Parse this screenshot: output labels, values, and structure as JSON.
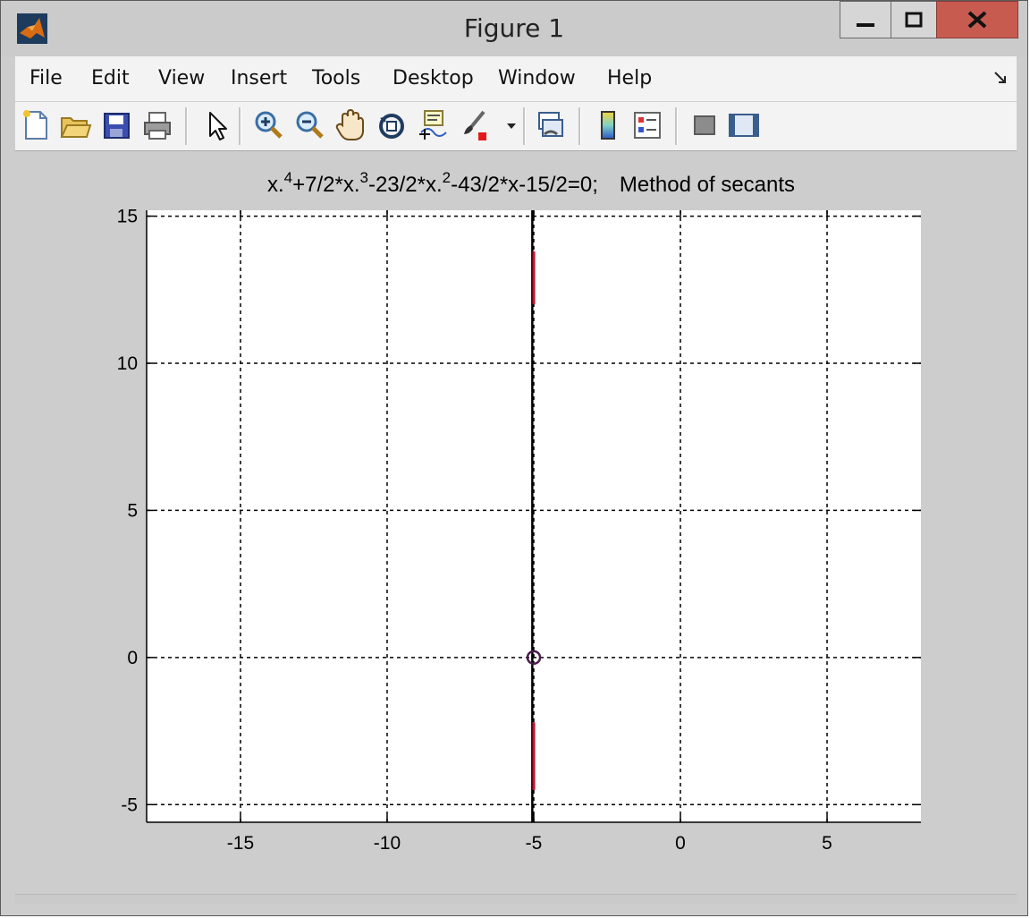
{
  "window": {
    "title": "Figure 1",
    "minimize_icon": "minimize-icon",
    "maximize_icon": "maximize-icon",
    "close_icon": "close-icon",
    "close_color": "#c75b50"
  },
  "menu": {
    "items": [
      "File",
      "Edit",
      "View",
      "Insert",
      "Tools",
      "Desktop",
      "Window",
      "Help"
    ],
    "dock_icon": "dock-arrow-icon"
  },
  "toolbar": {
    "icons": [
      "new-figure-icon",
      "open-file-icon",
      "save-icon",
      "print-icon",
      "edit-plot-arrow-icon",
      "zoom-in-icon",
      "zoom-out-icon",
      "pan-hand-icon",
      "rotate-3d-icon",
      "data-cursor-icon",
      "brush-icon",
      "brush-dropdown-icon",
      "link-plot-icon",
      "insert-colorbar-icon",
      "insert-legend-icon",
      "hide-plot-tools-icon",
      "show-plot-tools-icon"
    ]
  },
  "chart_data": {
    "type": "line",
    "title": "x.^4+7/2*x.^3-23/2*x.^2-43/2*x-15/2=0;   Method of secants",
    "title_parts": {
      "a": "x.",
      "sup1": "4",
      "b": "+7/2*x.",
      "sup2": "3",
      "c": "-23/2*x.",
      "sup3": "2",
      "d": "-43/2*x-15/2=0;",
      "e": "Method of secants"
    },
    "xlabel": "",
    "ylabel": "",
    "xlim": [
      -18.2,
      8.2
    ],
    "ylim": [
      -5.6,
      15.2
    ],
    "xticks": [
      -15,
      -10,
      -5,
      0,
      5
    ],
    "yticks": [
      -5,
      0,
      5,
      10,
      15
    ],
    "grid": true,
    "series": [
      {
        "color": "#000000",
        "x": [
          -5.05,
          -5.05
        ],
        "y": [
          15.2,
          -5.6
        ]
      },
      {
        "color": "#c8102e",
        "x": [
          -5.0,
          -5.0
        ],
        "y": [
          13.8,
          12.0
        ]
      },
      {
        "color": "#c8102e",
        "x": [
          -5.0,
          -5.0
        ],
        "y": [
          -2.2,
          -4.5
        ]
      }
    ],
    "points": [
      {
        "x": -5,
        "y": 0,
        "marker": "o",
        "color": "#4b1d4d"
      }
    ]
  }
}
